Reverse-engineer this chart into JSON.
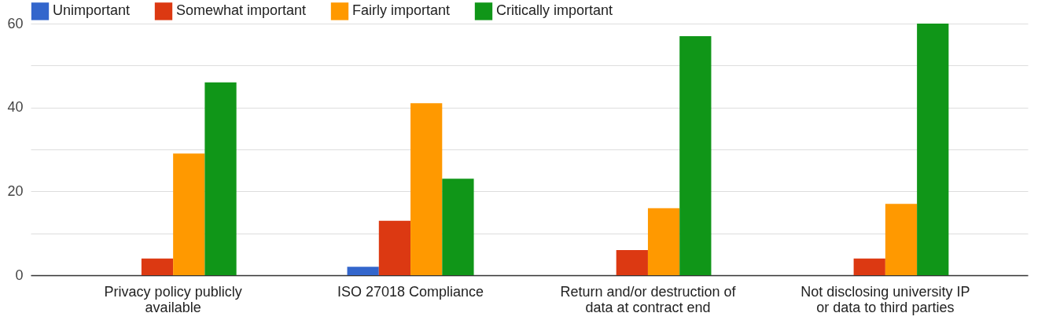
{
  "chart_data": {
    "type": "bar",
    "categories": [
      "Privacy policy publicly available",
      "ISO 27018 Compliance",
      "Return and/or destruction of data at contract end",
      "Not disclosing university IP or data to third parties"
    ],
    "series": [
      {
        "name": "Unimportant",
        "color": "#3366cc",
        "values": [
          0,
          2,
          0,
          0
        ]
      },
      {
        "name": "Somewhat important",
        "color": "#dc3912",
        "values": [
          4,
          13,
          6,
          4
        ]
      },
      {
        "name": "Fairly important",
        "color": "#ff9900",
        "values": [
          29,
          41,
          16,
          17
        ]
      },
      {
        "name": "Critically important",
        "color": "#109618",
        "values": [
          46,
          23,
          57,
          60
        ]
      }
    ],
    "ylim": [
      0,
      60
    ],
    "yticks": [
      0,
      {
        "value": 10,
        "label": null
      },
      20,
      {
        "value": 30,
        "label": null
      },
      40,
      {
        "value": 50,
        "label": null
      },
      60
    ],
    "grid": true,
    "legend": "top left"
  }
}
